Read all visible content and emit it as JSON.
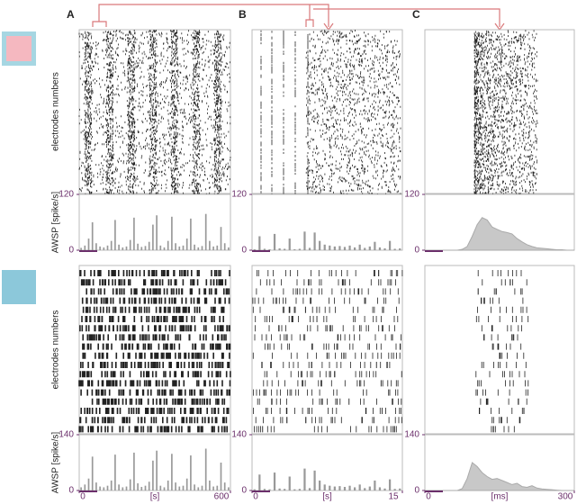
{
  "panel_labels": [
    "A",
    "B",
    "C"
  ],
  "rows": [
    {
      "raster_ylabel": "electrodes numbers",
      "rate_ylabel": "AWSP [spike/s]"
    },
    {
      "raster_ylabel": "electrodes numbers",
      "rate_ylabel": "AWSP [spike/s]"
    }
  ],
  "chart_data": [
    {
      "type": "bar",
      "color": "#999999",
      "ylim": [
        0,
        120
      ],
      "yticks": [
        0,
        120
      ],
      "values": [
        5,
        10,
        25,
        60,
        15,
        8,
        6,
        10,
        20,
        65,
        12,
        6,
        8,
        22,
        70,
        14,
        7,
        9,
        18,
        55,
        75,
        10,
        6,
        20,
        72,
        15,
        8,
        10,
        25,
        68,
        12,
        6,
        9,
        78,
        20,
        8,
        10,
        50,
        15,
        6
      ]
    },
    {
      "type": "bar",
      "color": "#999999",
      "ylim": [
        0,
        120
      ],
      "yticks": [
        0,
        120
      ],
      "values": [
        2,
        30,
        3,
        2,
        35,
        4,
        3,
        25,
        2,
        3,
        40,
        5,
        38,
        20,
        12,
        10,
        8,
        9,
        7,
        10,
        6,
        12,
        5,
        8,
        18,
        6,
        4,
        20,
        3,
        4
      ]
    },
    {
      "type": "area",
      "color": "#c8c8c8",
      "ylim": [
        0,
        120
      ],
      "yticks": [
        0,
        120
      ],
      "values": [
        0,
        0,
        0,
        0,
        0,
        0,
        0,
        2,
        8,
        30,
        55,
        70,
        65,
        50,
        45,
        40,
        38,
        35,
        25,
        18,
        12,
        8,
        5,
        4,
        3,
        2,
        1,
        1,
        0,
        0
      ]
    },
    {
      "type": "bar",
      "color": "#999999",
      "ylim": [
        0,
        140
      ],
      "yticks": [
        0,
        140
      ],
      "xlim": [
        0,
        600
      ],
      "xticks": [
        0,
        600
      ],
      "x_label": "[s]",
      "values": [
        8,
        15,
        30,
        85,
        20,
        10,
        8,
        12,
        25,
        90,
        15,
        8,
        10,
        28,
        95,
        18,
        9,
        12,
        22,
        75,
        100,
        12,
        8,
        25,
        92,
        20,
        10,
        12,
        30,
        88,
        15,
        8,
        12,
        105,
        25,
        10,
        12,
        70,
        20,
        8
      ]
    },
    {
      "type": "bar",
      "color": "#999999",
      "ylim": [
        0,
        140
      ],
      "yticks": [
        0,
        140
      ],
      "xlim": [
        0,
        15
      ],
      "xticks": [
        0,
        15
      ],
      "x_label": "[s]",
      "values": [
        3,
        40,
        4,
        3,
        45,
        5,
        4,
        35,
        3,
        4,
        55,
        6,
        50,
        25,
        15,
        12,
        10,
        11,
        9,
        12,
        8,
        15,
        6,
        10,
        25,
        8,
        5,
        28,
        4,
        5
      ]
    },
    {
      "type": "area",
      "color": "#c8c8c8",
      "ylim": [
        0,
        140
      ],
      "yticks": [
        0,
        140
      ],
      "xlim": [
        0,
        300
      ],
      "xticks": [
        0,
        300
      ],
      "x_label": "[ms]",
      "values": [
        0,
        0,
        0,
        0,
        0,
        0,
        0,
        5,
        30,
        70,
        60,
        45,
        35,
        28,
        30,
        25,
        20,
        15,
        18,
        10,
        8,
        12,
        6,
        4,
        3,
        2,
        1,
        0,
        0,
        0
      ]
    }
  ]
}
